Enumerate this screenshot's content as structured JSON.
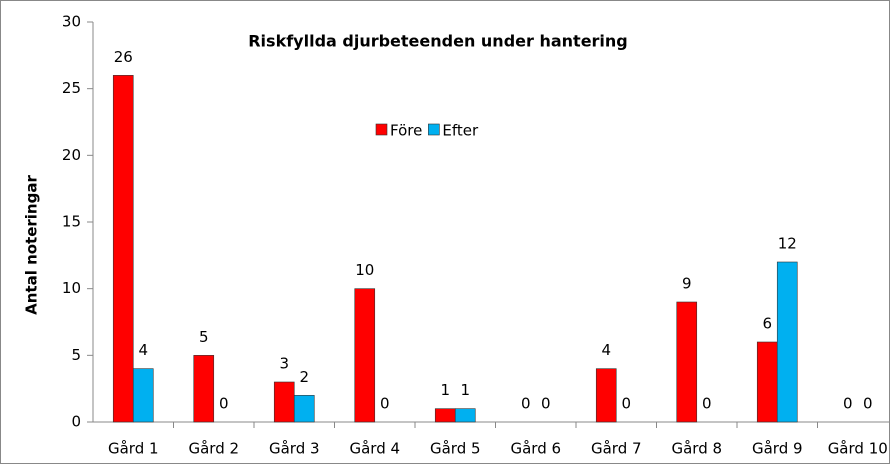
{
  "chart_data": {
    "type": "bar",
    "title": "Riskfyllda djurbeteenden under hantering",
    "ylabel": "Antal noteringar",
    "categories": [
      "Gård 1",
      "Gård 2",
      "Gård 3",
      "Gård 4",
      "Gård 5",
      "Gård 6",
      "Gård 7",
      "Gård 8",
      "Gård 9",
      "Gård 10"
    ],
    "series": [
      {
        "name": "Före",
        "color": "#ff0000",
        "values": [
          26,
          5,
          3,
          10,
          1,
          0,
          4,
          9,
          6,
          0
        ]
      },
      {
        "name": "Efter",
        "color": "#00b0f0",
        "values": [
          4,
          0,
          2,
          0,
          1,
          0,
          0,
          0,
          12,
          0
        ]
      }
    ],
    "ylim": [
      0,
      30
    ],
    "yticks": [
      0,
      5,
      10,
      15,
      20,
      25,
      30
    ],
    "grid": false,
    "legend": "top-center"
  }
}
